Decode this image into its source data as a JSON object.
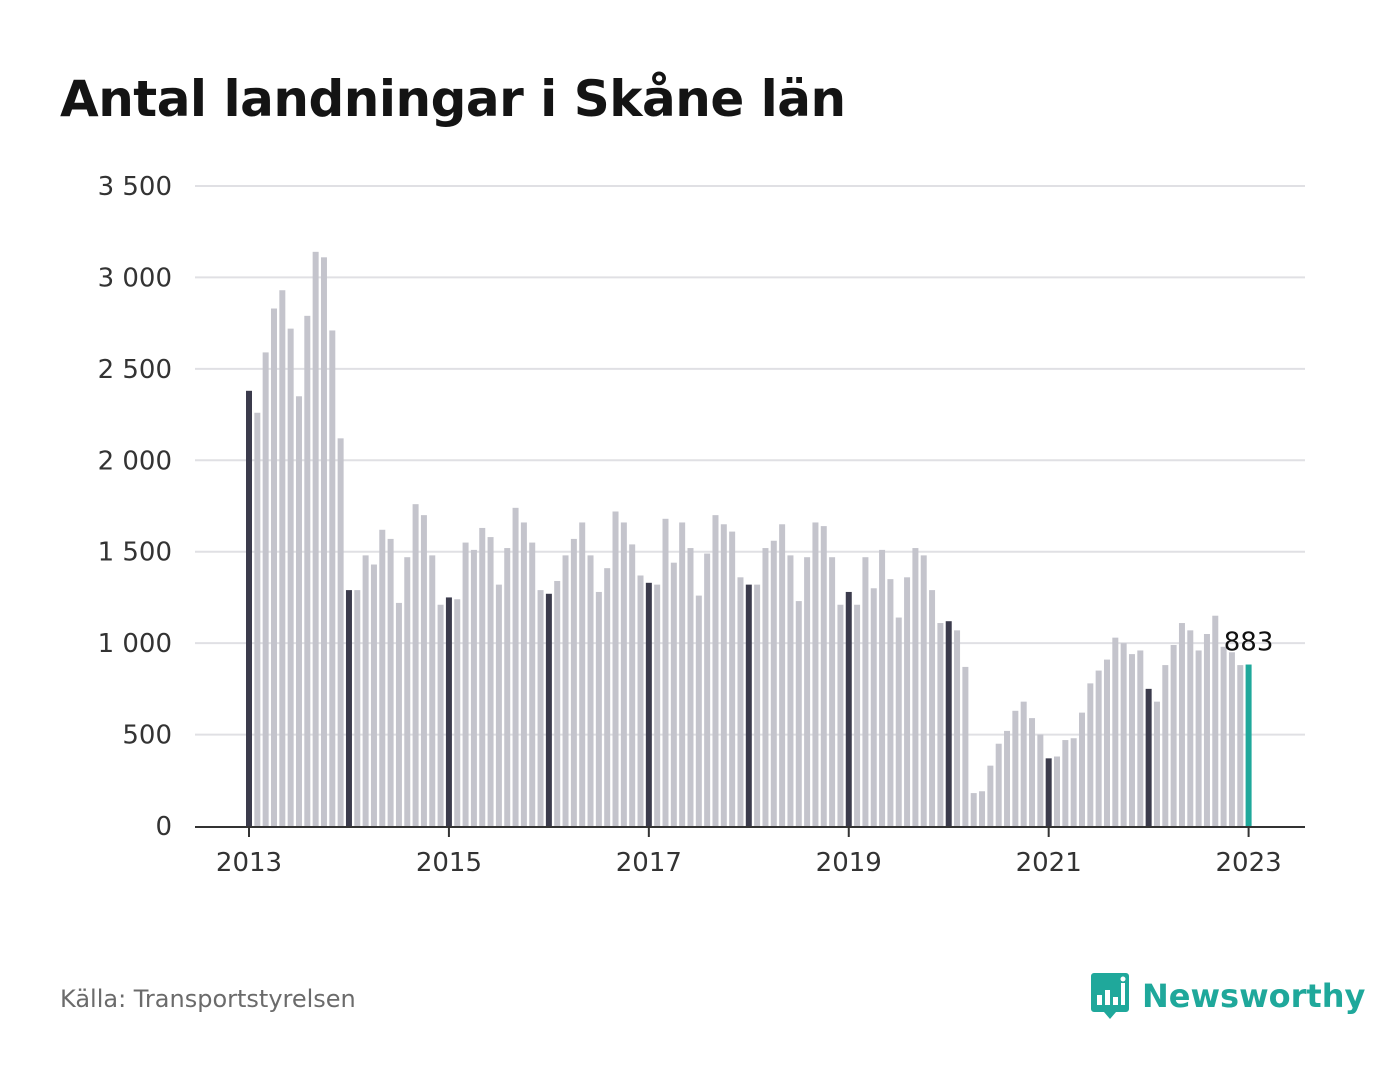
{
  "title": "Antal landningar i Skåne län",
  "source": "Källa: Transportstyrelsen",
  "brand": {
    "name": "Newsworthy",
    "icon": "newsworthy-logo-icon"
  },
  "colors": {
    "bar": "#c4c4cc",
    "january_bar": "#3b3b4c",
    "highlight": "#1fa89b",
    "grid": "#e0e0e4",
    "axis": "#333333"
  },
  "chart_data": {
    "type": "bar",
    "title": "Antal landningar i Skåne län",
    "xlabel": "",
    "ylabel": "",
    "ylim": [
      0,
      3500
    ],
    "yticks": [
      0,
      500,
      1000,
      1500,
      2000,
      2500,
      3000,
      3500
    ],
    "ytick_labels": [
      "0",
      "500",
      "1 000",
      "1 500",
      "2 000",
      "2 500",
      "3 000",
      "3 500"
    ],
    "xticks": [
      "2013",
      "2015",
      "2017",
      "2019",
      "2021",
      "2023"
    ],
    "grid": true,
    "start": "2013-01",
    "interval": "month",
    "highlight_label": "883",
    "values": [
      2380,
      2260,
      2590,
      2830,
      2930,
      2720,
      2350,
      2790,
      3140,
      3110,
      2710,
      2120,
      1290,
      1290,
      1480,
      1430,
      1620,
      1570,
      1220,
      1470,
      1760,
      1700,
      1480,
      1210,
      1250,
      1240,
      1550,
      1510,
      1630,
      1580,
      1320,
      1520,
      1740,
      1660,
      1550,
      1290,
      1270,
      1340,
      1480,
      1570,
      1660,
      1480,
      1280,
      1410,
      1720,
      1660,
      1540,
      1370,
      1330,
      1320,
      1680,
      1440,
      1660,
      1520,
      1260,
      1490,
      1700,
      1650,
      1610,
      1360,
      1320,
      1320,
      1520,
      1560,
      1650,
      1480,
      1230,
      1470,
      1660,
      1640,
      1470,
      1210,
      1280,
      1210,
      1470,
      1300,
      1510,
      1350,
      1140,
      1360,
      1520,
      1480,
      1290,
      1110,
      1120,
      1070,
      870,
      180,
      190,
      330,
      450,
      520,
      630,
      680,
      590,
      500,
      370,
      380,
      470,
      480,
      620,
      780,
      850,
      910,
      1030,
      1000,
      940,
      960,
      750,
      680,
      880,
      990,
      1110,
      1070,
      960,
      1050,
      1150,
      980,
      950,
      880,
      883
    ]
  }
}
